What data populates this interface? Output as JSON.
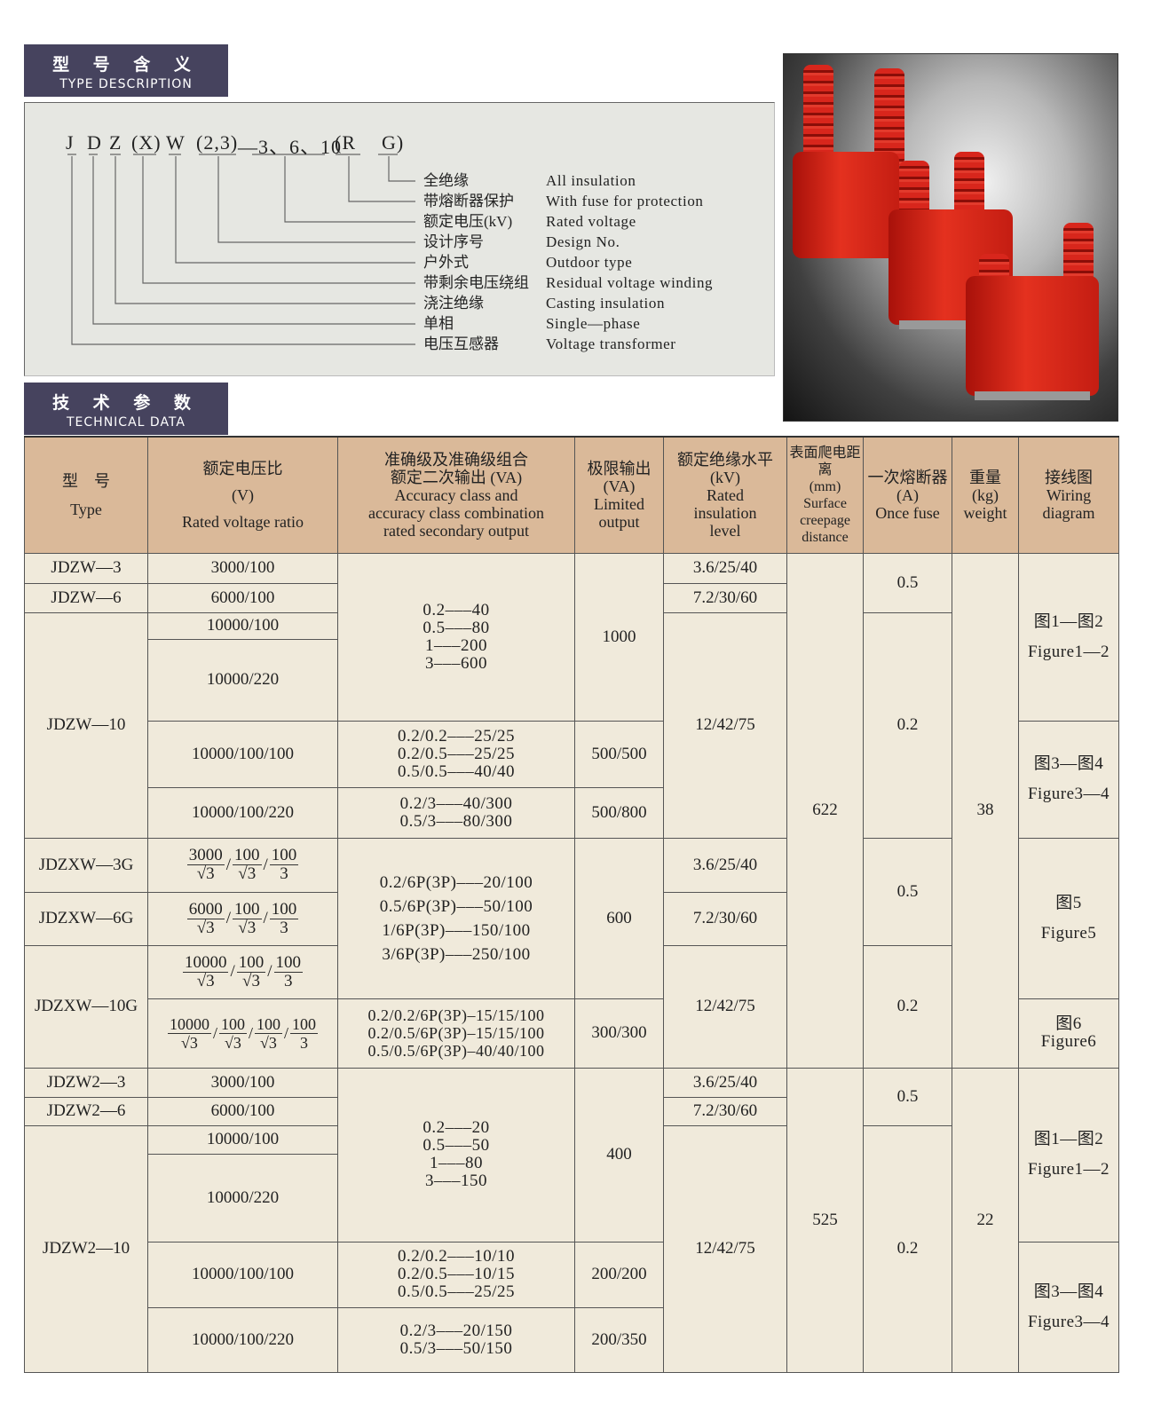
{
  "sections": {
    "desc": {
      "cn": "型 号 含 义",
      "en": "TYPE DESCRIPTION"
    },
    "tech": {
      "cn": "技 术 参 数",
      "en": "TECHNICAL DATA"
    }
  },
  "code": [
    "J",
    "D",
    "Z",
    "(X)",
    "W",
    "(2,3)",
    "—3、6、10",
    "(R",
    "G)"
  ],
  "legend": [
    {
      "cn": "全绝缘",
      "en": "All insulation"
    },
    {
      "cn": "带熔断器保护",
      "en": "With fuse for protection"
    },
    {
      "cn": "额定电压(kV)",
      "en": "Rated voltage"
    },
    {
      "cn": "设计序号",
      "en": "Design No."
    },
    {
      "cn": "户外式",
      "en": "Outdoor type"
    },
    {
      "cn": "带剩余电压绕组",
      "en": "Residual voltage winding"
    },
    {
      "cn": "浇注绝缘",
      "en": "Casting insulation"
    },
    {
      "cn": "单相",
      "en": "Single—phase"
    },
    {
      "cn": "电压互感器",
      "en": "Voltage transformer"
    }
  ],
  "table": {
    "headers": {
      "type": {
        "cn": "型　号",
        "en": "Type"
      },
      "ratio": {
        "cn": "额定电压比",
        "unit": "(V)",
        "en": "Rated voltage ratio"
      },
      "accuracy": {
        "cn1": "准确级及准确级组合",
        "cn2": "额定二次输出 (VA)",
        "en1": "Accuracy class and",
        "en2": "accuracy class combination",
        "en3": "rated secondary output"
      },
      "limited": {
        "cn": "极限输出",
        "unit": "(VA)",
        "en1": "Limited",
        "en2": "output"
      },
      "insulation": {
        "cn": "额定绝缘水平",
        "unit": "(kV)",
        "en1": "Rated",
        "en2": "insulation",
        "en3": "level"
      },
      "creepage": {
        "cn": "表面爬电距离",
        "unit": "(mm)",
        "en1": "Surface",
        "en2": "creepage",
        "en3": "distance"
      },
      "fuse": {
        "cn": "一次熔断器",
        "unit": "(A)",
        "en": "Once fuse"
      },
      "weight": {
        "cn": "重量",
        "unit": "(kg)",
        "en": "weight"
      },
      "wiring": {
        "cn": "接线图",
        "en1": "Wiring",
        "en2": "diagram"
      }
    },
    "types": [
      "JDZW—3",
      "JDZW—6",
      "JDZW—10",
      "JDZXW—3G",
      "JDZXW—6G",
      "JDZXW—10G",
      "JDZW2—3",
      "JDZW2—6",
      "JDZW2—10"
    ],
    "ratios": [
      "3000/100",
      "6000/100",
      "10000/100",
      "10000/220",
      "10000/100/100",
      "10000/100/220",
      [
        {
          "n": "3000",
          "d": "√3"
        },
        {
          "n": "100",
          "d": "√3"
        },
        {
          "n": "100",
          "d": "3"
        }
      ],
      [
        {
          "n": "6000",
          "d": "√3"
        },
        {
          "n": "100",
          "d": "√3"
        },
        {
          "n": "100",
          "d": "3"
        }
      ],
      [
        {
          "n": "10000",
          "d": "√3"
        },
        {
          "n": "100",
          "d": "√3"
        },
        {
          "n": "100",
          "d": "3"
        }
      ],
      [
        {
          "n": "10000",
          "d": "√3"
        },
        {
          "n": "100",
          "d": "√3"
        },
        {
          "n": "100",
          "d": "√3"
        },
        {
          "n": "100",
          "d": "3"
        }
      ],
      "3000/100",
      "6000/100",
      "10000/100",
      "10000/220",
      "10000/100/100",
      "10000/100/220"
    ],
    "accuracy": [
      [
        "0.2–––40",
        "0.5–––80",
        "1–––200",
        "3–––600"
      ],
      [
        "0.2/0.2–––25/25",
        "0.2/0.5–––25/25",
        "0.5/0.5–––40/40"
      ],
      [
        "0.2/3–––40/300",
        "0.5/3–––80/300"
      ],
      [
        "0.2/6P(3P)–––20/100",
        "0.5/6P(3P)–––50/100",
        "1/6P(3P)–––150/100",
        "3/6P(3P)–––250/100"
      ],
      [
        "0.2/0.2/6P(3P)–15/15/100",
        "0.2/0.5/6P(3P)–15/15/100",
        "0.5/0.5/6P(3P)–40/40/100"
      ],
      [
        "0.2–––20",
        "0.5–––50",
        "1–––80",
        "3–––150"
      ],
      [
        "0.2/0.2–––10/10",
        "0.2/0.5–––10/15",
        "0.5/0.5–––25/25"
      ],
      [
        "0.2/3–––20/150",
        "0.5/3–––50/150"
      ]
    ],
    "limited": [
      "1000",
      "500/500",
      "500/800",
      "600",
      "300/300",
      "400",
      "200/200",
      "200/350"
    ],
    "insulation": [
      "3.6/25/40",
      "7.2/30/60",
      "12/42/75",
      "3.6/25/40",
      "7.2/30/60",
      "12/42/75",
      "3.6/25/40",
      "7.2/30/60",
      "12/42/75"
    ],
    "creepage": [
      "622",
      "525"
    ],
    "fuse": [
      "0.5",
      "0.2",
      "0.5",
      "0.2",
      "0.5",
      "0.2"
    ],
    "weight": [
      "38",
      "22"
    ],
    "wiring": [
      {
        "cn": "图1—图2",
        "en": "Figure1—2"
      },
      {
        "cn": "图3—图4",
        "en": "Figure3—4"
      },
      {
        "cn": "图5",
        "en": "Figure5"
      },
      {
        "cn": "图6",
        "en": "Figure6"
      },
      {
        "cn": "图1—图2",
        "en": "Figure1—2"
      },
      {
        "cn": "图3—图4",
        "en": "Figure3—4"
      }
    ]
  },
  "colors": {
    "section_bar": "#46435e",
    "header": "#dab999",
    "cell": "#f0eadb",
    "product": "#d8261c"
  }
}
